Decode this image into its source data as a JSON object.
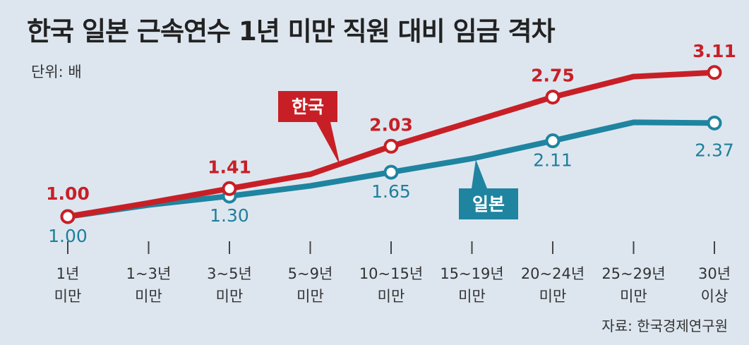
{
  "title": "한국  일본 근속연수 1년 미만 직원 대비 임금 격차",
  "unit_label": "단위: 배",
  "source": "자료: 한국경제연구원",
  "colors": {
    "korea": "#c81f26",
    "japan": "#1f84a0",
    "background": "#dde6ef"
  },
  "chart_data": {
    "type": "line",
    "title": "한국  일본 근속연수 1년 미만 직원 대비 임금 격차",
    "unit": "단위: 배",
    "categories": [
      [
        "1년",
        "미만"
      ],
      [
        "1~3년",
        "미만"
      ],
      [
        "3~5년",
        "미만"
      ],
      [
        "5~9년",
        "미만"
      ],
      [
        "10~15년",
        "미만"
      ],
      [
        "15~19년",
        "미만"
      ],
      [
        "20~24년",
        "미만"
      ],
      [
        "25~29년",
        "미만"
      ],
      [
        "30년",
        "이상"
      ]
    ],
    "ylim": [
      0.8,
      3.3
    ],
    "grid": false,
    "series": [
      {
        "name": "한국",
        "color": "#c81f26",
        "values": [
          1.0,
          1.2,
          1.41,
          1.62,
          2.03,
          2.39,
          2.75,
          3.05,
          3.11
        ],
        "labeled_points": [
          {
            "index": 0,
            "label": "1.00"
          },
          {
            "index": 2,
            "label": "1.41"
          },
          {
            "index": 4,
            "label": "2.03"
          },
          {
            "index": 6,
            "label": "2.75"
          },
          {
            "index": 8,
            "label": "3.11"
          }
        ]
      },
      {
        "name": "일본",
        "color": "#1f84a0",
        "values": [
          1.0,
          1.17,
          1.3,
          1.45,
          1.65,
          1.85,
          2.11,
          2.38,
          2.37
        ],
        "labeled_points": [
          {
            "index": 0,
            "label": "1.00"
          },
          {
            "index": 2,
            "label": "1.30"
          },
          {
            "index": 4,
            "label": "1.65"
          },
          {
            "index": 6,
            "label": "2.11"
          },
          {
            "index": 8,
            "label": "2.37"
          }
        ]
      }
    ]
  }
}
